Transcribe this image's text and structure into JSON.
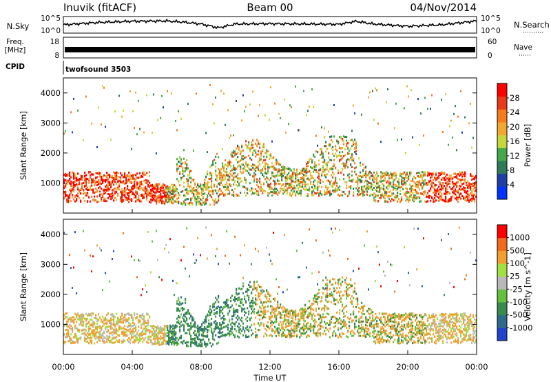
{
  "header": {
    "station": "Inuvik (fitACF)",
    "beam": "Beam 00",
    "date": "04/Nov/2014"
  },
  "noise_panel": {
    "left_label": "N.Sky",
    "right_label": "N.Search",
    "left_ticks": [
      "10^5",
      "10^0"
    ],
    "right_ticks": [
      "10^5",
      "10^0"
    ]
  },
  "freq_panel": {
    "left_label_1": "Freq.",
    "left_label_2": "[MHz]",
    "right_label": "Nave",
    "left_ticks": [
      "18",
      "8"
    ],
    "right_ticks": [
      "60",
      "0"
    ]
  },
  "cpid": {
    "label": "CPID",
    "value": "twofsound 3503"
  },
  "time_axis": {
    "label": "Time UT",
    "ticks": [
      "00:00",
      "04:00",
      "08:00",
      "12:00",
      "16:00",
      "20:00",
      "00:00"
    ]
  },
  "colors": {
    "power": [
      "#0033ff",
      "#1f3fa8",
      "#2e7b5a",
      "#44a84a",
      "#c7d63a",
      "#f0a830",
      "#f57b1e",
      "#e83a18",
      "#ff0000"
    ],
    "velocity": [
      "#2244cc",
      "#2f6a8a",
      "#3a8a50",
      "#66c040",
      "#b9b9b9",
      "#a0e040",
      "#f0a030",
      "#f26b1a",
      "#ff0000"
    ]
  },
  "chart_data": [
    {
      "type": "line",
      "title": "",
      "name": "noise",
      "ylabel": "N.Sky",
      "x": [
        0,
        2,
        4,
        6,
        7,
        8,
        9,
        10,
        12,
        14,
        16,
        17,
        18,
        20,
        22,
        24
      ],
      "series": [
        {
          "name": "",
          "values": [
            0.55,
            0.7,
            0.78,
            0.8,
            0.72,
            0.6,
            0.35,
            0.6,
            0.62,
            0.6,
            0.58,
            0.78,
            0.6,
            0.45,
            0.55,
            0.8
          ]
        }
      ],
      "xlim": [
        0,
        24
      ],
      "ylim": [
        0,
        1
      ]
    },
    {
      "type": "scatter",
      "title": "",
      "ylabel": "Slant Range [km]",
      "xlabel": "",
      "colorbar_label": "Power [dB]",
      "colorbar_ticks": [
        "28",
        "24",
        "20",
        "16",
        "12",
        "8",
        "4"
      ],
      "ylim": [
        0,
        4500
      ],
      "xlim": [
        0,
        24
      ],
      "yticks": [
        1000,
        2000,
        3000,
        4000
      ]
    },
    {
      "type": "scatter",
      "title": "",
      "ylabel": "Slant Range [km]",
      "xlabel": "Time UT",
      "colorbar_label": "Velocity [m s^-1]",
      "colorbar_ticks": [
        "1000",
        "500",
        "100",
        "25",
        "-25",
        "-100",
        "-500",
        "-1000"
      ],
      "ylim": [
        0,
        4500
      ],
      "xlim": [
        0,
        24
      ],
      "yticks": [
        1000,
        2000,
        3000,
        4000
      ]
    }
  ]
}
